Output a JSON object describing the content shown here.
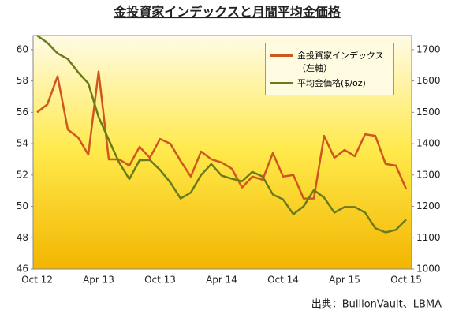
{
  "chart_data": {
    "type": "line",
    "title": "金投資家インデックスと月間平均金価格",
    "source": "出典：BullionVault、LBMA",
    "categories": [
      "Oct 12",
      null,
      null,
      null,
      null,
      null,
      "Apr 13",
      null,
      null,
      null,
      null,
      null,
      "Oct 13",
      null,
      null,
      null,
      null,
      null,
      "Apr 14",
      null,
      null,
      null,
      null,
      null,
      "Oct 14",
      null,
      null,
      null,
      null,
      null,
      "Apr 15",
      null,
      null,
      null,
      null,
      null,
      "Oct 15"
    ],
    "series": [
      {
        "name": "金投資家インデックス（左軸）",
        "color": "#d0561f",
        "axis": "y",
        "values": [
          56.0,
          56.5,
          58.3,
          54.9,
          54.4,
          53.3,
          58.6,
          53.0,
          53.0,
          52.6,
          53.8,
          53.1,
          54.3,
          54.0,
          52.9,
          51.9,
          53.5,
          53.0,
          52.8,
          52.4,
          51.2,
          51.9,
          51.7,
          53.4,
          51.9,
          52.0,
          50.5,
          50.5,
          54.5,
          53.1,
          53.6,
          53.2,
          54.6,
          54.5,
          52.7,
          52.6,
          51.1
        ]
      },
      {
        "name": "平均金価格($/oz)",
        "color": "#6b7a1c",
        "axis": "y2",
        "values": [
          1745,
          1722,
          1688,
          1670,
          1628,
          1592,
          1485,
          1412,
          1340,
          1287,
          1347,
          1348,
          1316,
          1276,
          1225,
          1244,
          1300,
          1335,
          1298,
          1288,
          1280,
          1310,
          1295,
          1238,
          1222,
          1175,
          1200,
          1252,
          1228,
          1180,
          1198,
          1198,
          1180,
          1130,
          1117,
          1125,
          1158
        ]
      }
    ],
    "ylim": [
      46,
      60.9
    ],
    "yticks": [
      46,
      48,
      50,
      52,
      54,
      56,
      58,
      60
    ],
    "y2lim": [
      1000,
      1745
    ],
    "y2ticks": [
      1000,
      1100,
      1200,
      1300,
      1400,
      1500,
      1600,
      1700
    ],
    "legend": "top-right"
  }
}
